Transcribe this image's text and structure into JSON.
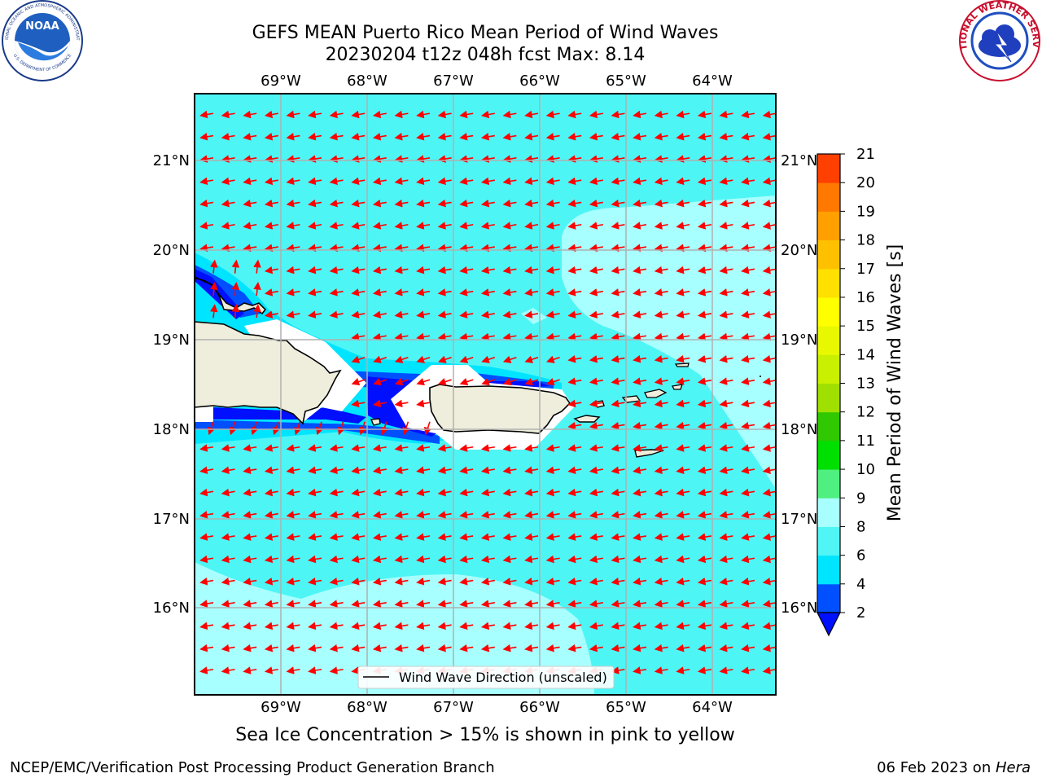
{
  "header": {
    "title_line1": "GEFS MEAN Puerto Rico Mean Period of Wind Waves",
    "title_line2": "20230204 t12z 048h fcst   Max: 8.14"
  },
  "logos": {
    "noaa_center": "NOAA",
    "noaa_ring": "NATIONAL OCEANIC AND ATMOSPHERIC ADMINISTRATION",
    "noaa_ring_bottom": "U.S. DEPARTMENT OF COMMERCE",
    "nws_ring": "NATIONAL WEATHER SERVICE"
  },
  "map": {
    "lon_ticks": [
      "69°W",
      "68°W",
      "67°W",
      "66°W",
      "65°W",
      "64°W"
    ],
    "lat_ticks": [
      "21°N",
      "20°N",
      "19°N",
      "18°N",
      "17°N",
      "16°N"
    ],
    "legend_label": "Wind Wave Direction (unscaled)",
    "arrow_color": "#ff0000",
    "ocean_color": "#4ef5f5",
    "grid_color": "#b0b0b0"
  },
  "colorbar": {
    "label": "Mean Period of Wind Waves [s]",
    "ticks": [
      "2",
      "4",
      "6",
      "8",
      "9",
      "10",
      "11",
      "12",
      "13",
      "14",
      "15",
      "16",
      "17",
      "18",
      "19",
      "20",
      "21"
    ],
    "colors": [
      "#0050ff",
      "#00e5ff",
      "#50f5f5",
      "#a8ffff",
      "#50f080",
      "#00e000",
      "#30c800",
      "#a0e000",
      "#c8f000",
      "#e8f800",
      "#ffff00",
      "#ffe000",
      "#ffc000",
      "#ffa000",
      "#ff7800",
      "#ff4000",
      "#ff0000"
    ],
    "underflow_color": "#0010ff"
  },
  "footer": {
    "ice_note": "Sea Ice Concentration > 15% is shown in pink to yellow",
    "left": "NCEP/EMC/Verification Post Processing Product Generation Branch",
    "right_date": "06 Feb 2023 on ",
    "right_host": "Hera"
  }
}
